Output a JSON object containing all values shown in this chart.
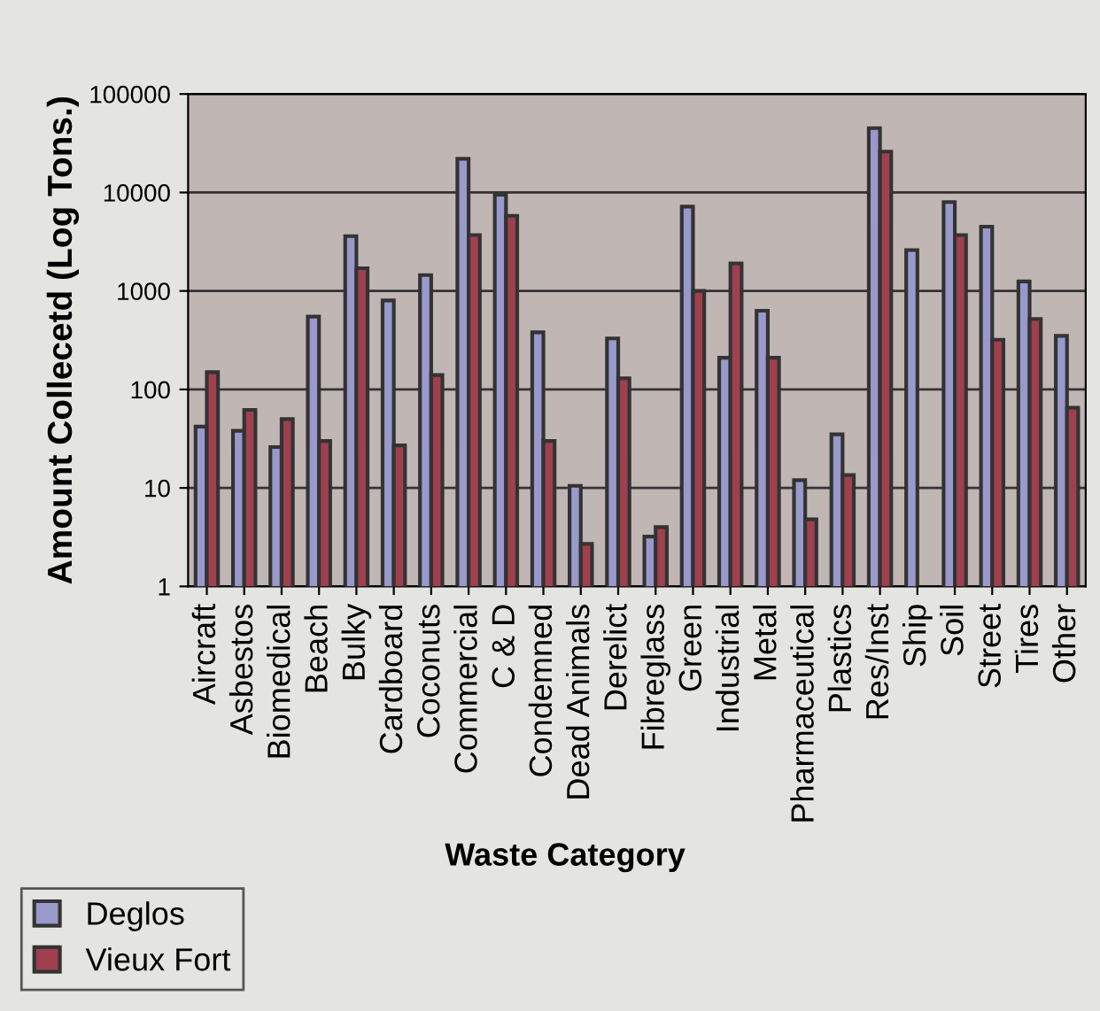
{
  "chart_data": {
    "type": "bar",
    "xlabel": "Waste Category",
    "ylabel": "Amount Collecetd (Log Tons.)",
    "categories": [
      "Aircraft",
      "Asbestos",
      "Biomedical",
      "Beach",
      "Bulky",
      "Cardboard",
      "Coconuts",
      "Commercial",
      "C & D",
      "Condemned",
      "Dead Animals",
      "Derelict",
      "Fibreglass",
      "Green",
      "Industrial",
      "Metal",
      "Pharmaceutical",
      "Plastics",
      "Res/Inst",
      "Ship",
      "Soil",
      "Street",
      "Tires",
      "Other"
    ],
    "series": [
      {
        "name": "Deglos",
        "color": "#9999cc",
        "values": [
          42,
          38,
          26,
          550,
          3600,
          800,
          1450,
          22000,
          9500,
          380,
          10.5,
          330,
          3.2,
          7200,
          210,
          630,
          12,
          35,
          45000,
          2600,
          8000,
          4500,
          1250,
          350
        ]
      },
      {
        "name": "Vieux Fort",
        "color": "#a0404f",
        "values": [
          150,
          62,
          50,
          30,
          1700,
          27,
          140,
          3700,
          5800,
          30,
          2.7,
          130,
          4,
          1000,
          1900,
          210,
          4.8,
          13.5,
          26000,
          null,
          3700,
          320,
          520,
          65
        ]
      }
    ],
    "log": true,
    "ylim": [
      1,
      100000
    ],
    "yticks": [
      1,
      10,
      100,
      1000,
      10000,
      100000
    ],
    "grid": "y",
    "legend": "bottom left"
  }
}
